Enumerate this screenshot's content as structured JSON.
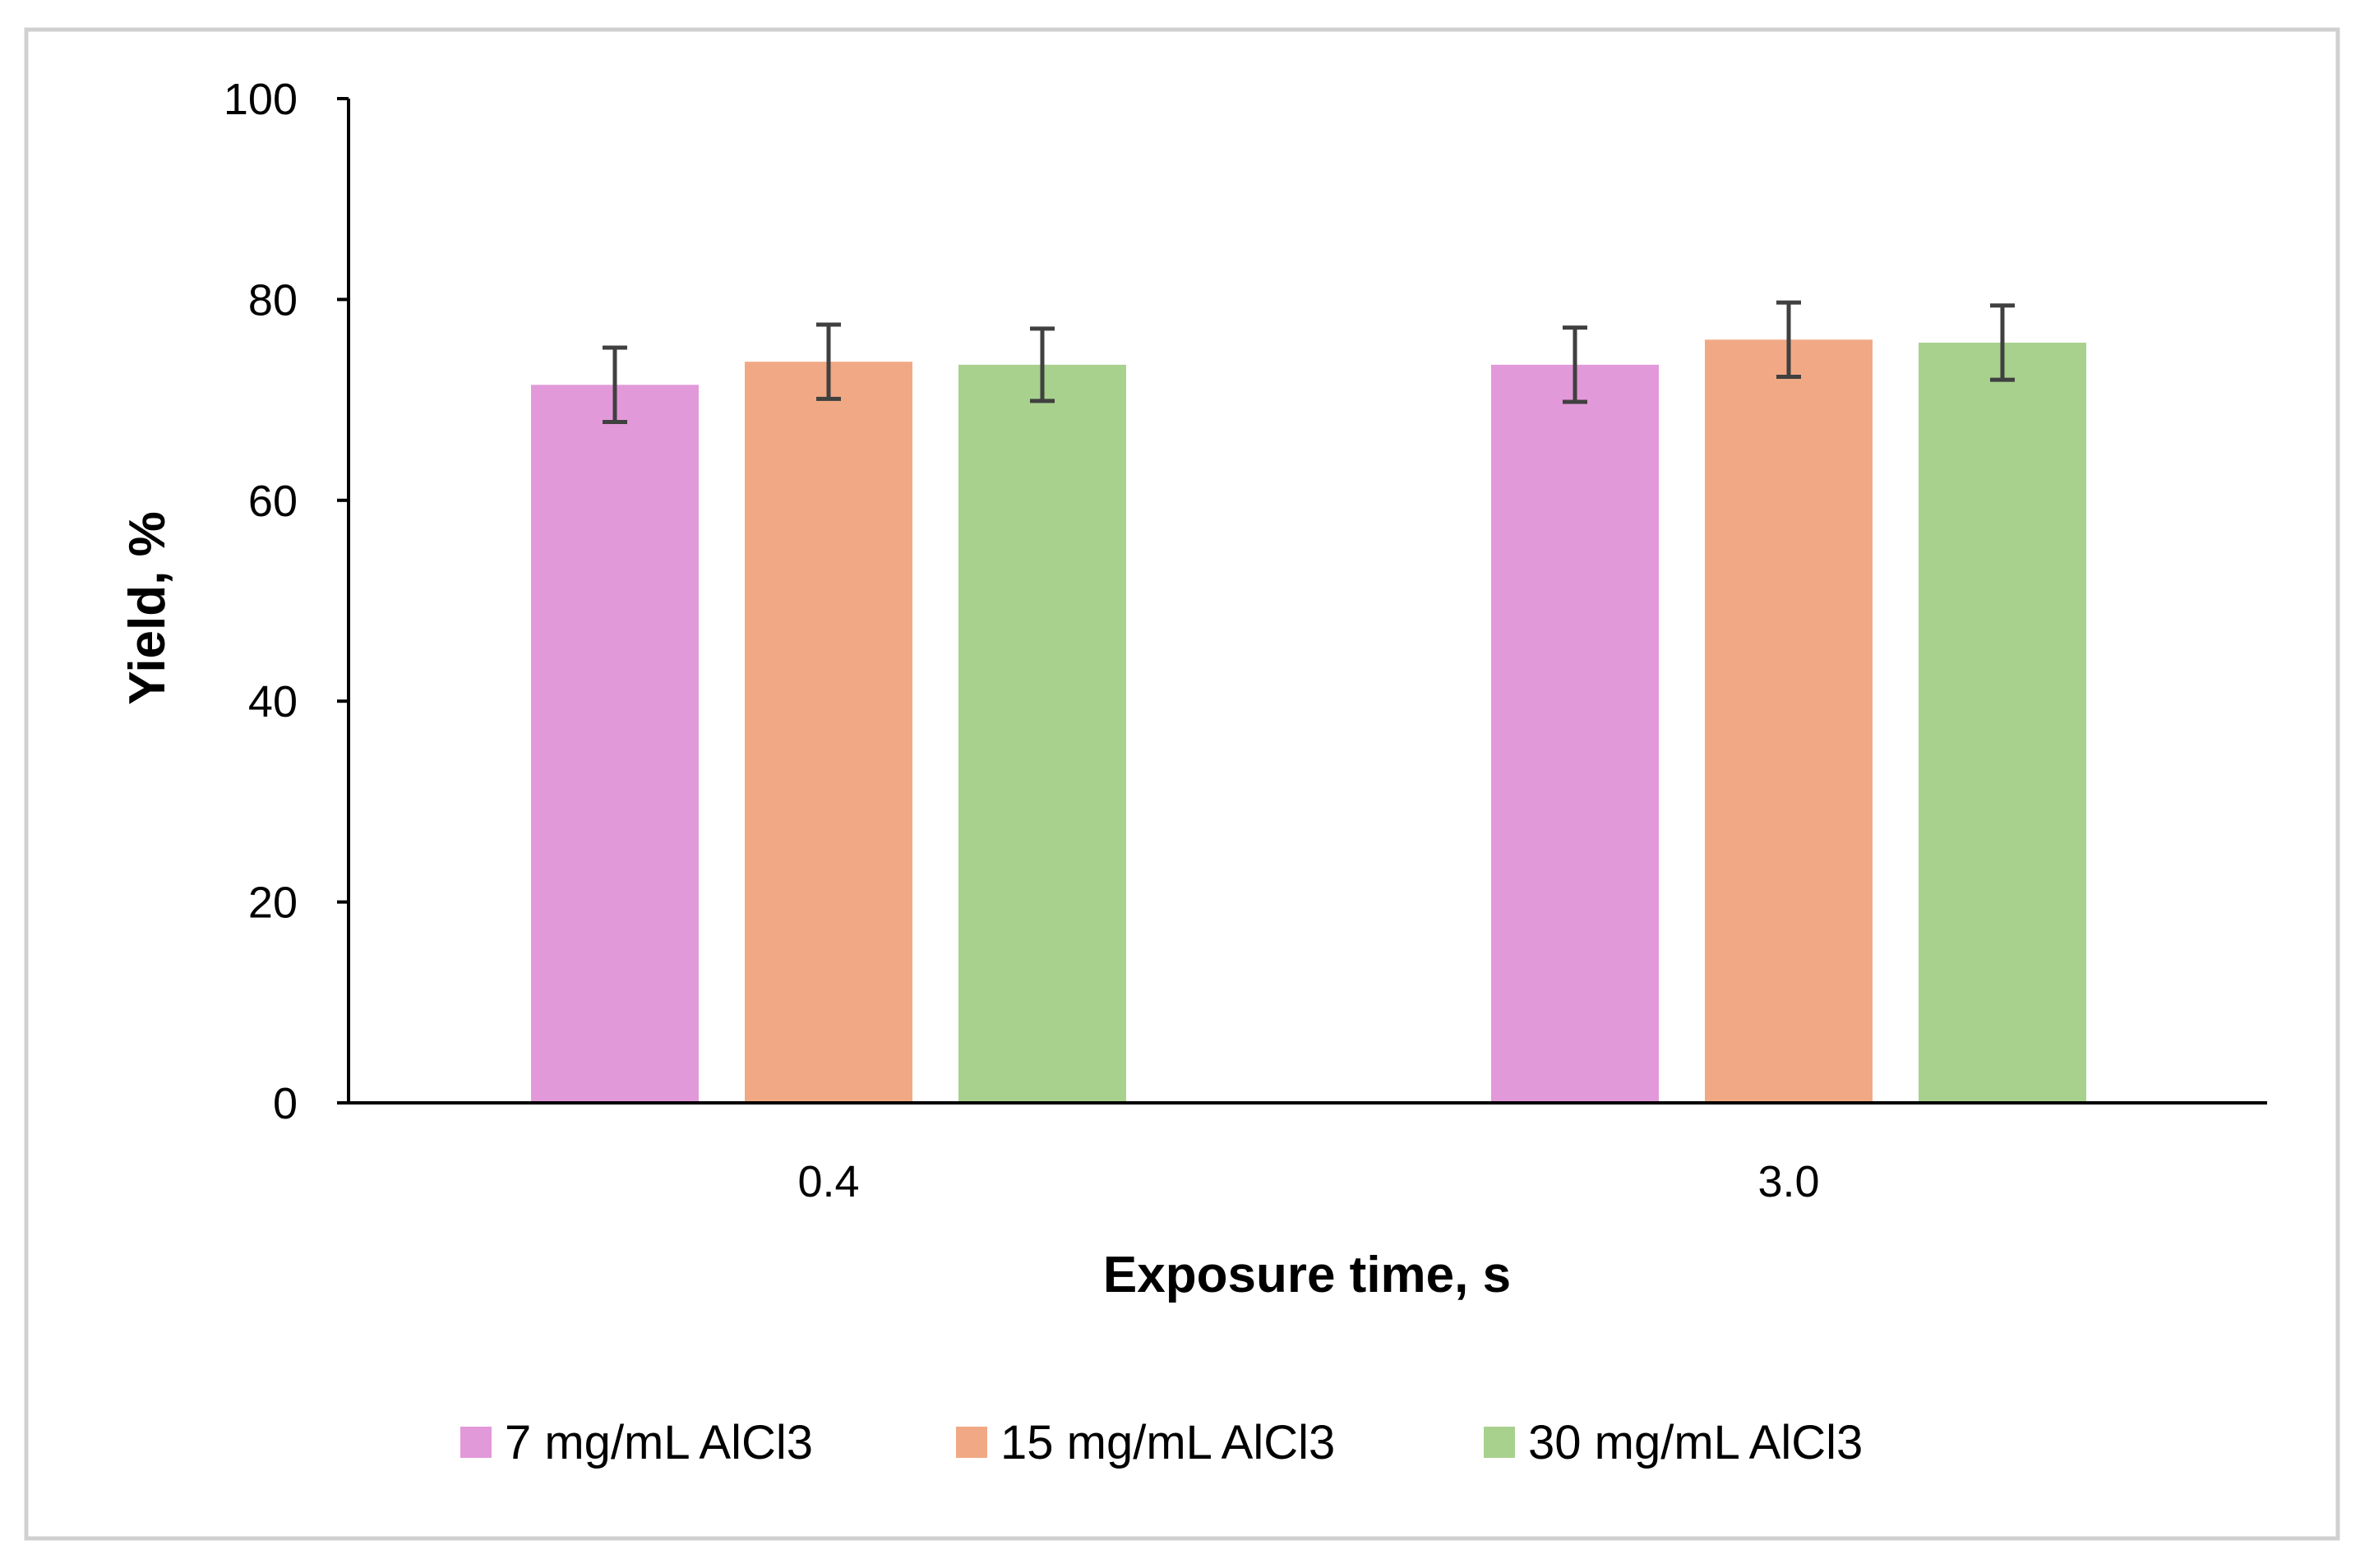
{
  "chart_data": {
    "type": "bar",
    "title": "",
    "xlabel": "Exposure time, s",
    "ylabel": "Yield, %",
    "categories": [
      "0.4",
      "3.0"
    ],
    "ylim": [
      0,
      100
    ],
    "yticks": [
      "0",
      "20",
      "40",
      "60",
      "80",
      "100"
    ],
    "grid": false,
    "legend_position": "bottom",
    "series": [
      {
        "name": "7 mg/mL AlCl3",
        "color": "#E299D9",
        "values": [
          71.5,
          73.5
        ],
        "errors": [
          3.7,
          3.7
        ]
      },
      {
        "name": "15 mg/mL AlCl3",
        "color": "#F1A985",
        "values": [
          73.8,
          76.0
        ],
        "errors": [
          3.7,
          3.7
        ]
      },
      {
        "name": "30 mg/mL AlCl3",
        "color": "#A9D18E",
        "values": [
          73.5,
          75.7
        ],
        "errors": [
          3.6,
          3.7
        ]
      }
    ]
  },
  "colors": {
    "frame": "#D0D0D0",
    "axis": "#000000",
    "errorbar": "#404040"
  }
}
